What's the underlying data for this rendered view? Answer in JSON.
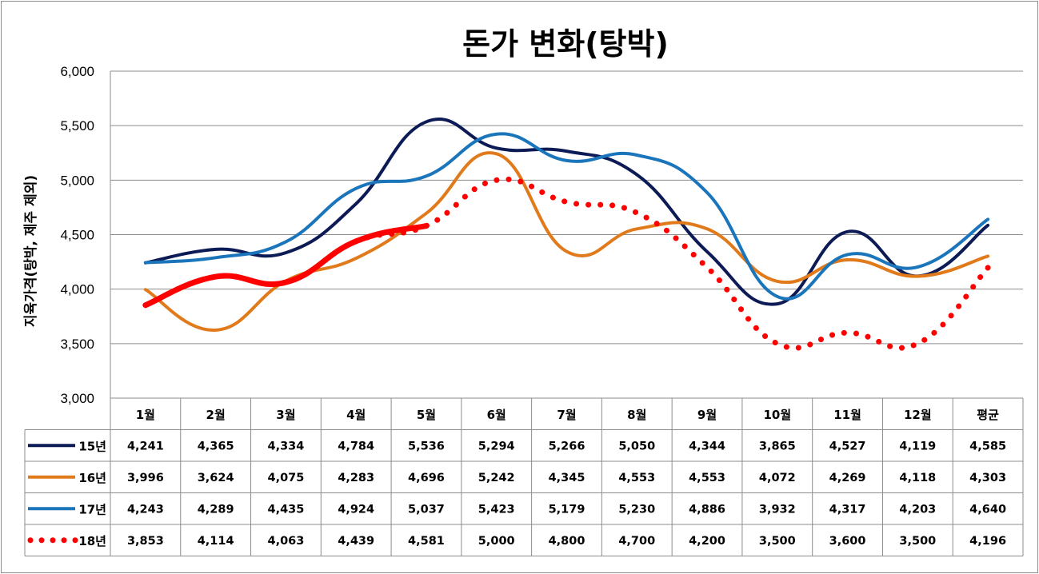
{
  "chart_data": {
    "type": "line",
    "title": "돈가 변화(탕박)",
    "ylabel": "지육가격(탕박, 제주 제외)",
    "xlabel": "",
    "ylim": [
      3000,
      6000
    ],
    "yticks": [
      "3,000",
      "3,500",
      "4,000",
      "4,500",
      "5,000",
      "5,500",
      "6,000"
    ],
    "ytick_values": [
      3000,
      3500,
      4000,
      4500,
      5000,
      5500,
      6000
    ],
    "grid": true,
    "categories": [
      "1월",
      "2월",
      "3월",
      "4월",
      "5월",
      "6월",
      "7월",
      "8월",
      "9월",
      "10월",
      "11월",
      "12월",
      "평균"
    ],
    "legend_position": "left (data table)",
    "series": [
      {
        "name": "15년",
        "color": "#0c1a55",
        "style": "solid",
        "width": 4,
        "values": [
          4241,
          4365,
          4334,
          4784,
          5536,
          5294,
          5266,
          5050,
          4344,
          3865,
          4527,
          4119,
          4585
        ],
        "labels": [
          "4,241",
          "4,365",
          "4,334",
          "4,784",
          "5,536",
          "5,294",
          "5,266",
          "5,050",
          "4,344",
          "3,865",
          "4,527",
          "4,119",
          "4,585"
        ]
      },
      {
        "name": "16년",
        "color": "#e07a1b",
        "style": "solid",
        "width": 4,
        "values": [
          3996,
          3624,
          4075,
          4283,
          4696,
          5242,
          4345,
          4553,
          4553,
          4072,
          4269,
          4118,
          4303
        ],
        "labels": [
          "3,996",
          "3,624",
          "4,075",
          "4,283",
          "4,696",
          "5,242",
          "4,345",
          "4,553",
          "4,553",
          "4,072",
          "4,269",
          "4,118",
          "4,303"
        ]
      },
      {
        "name": "17년",
        "color": "#1a75bb",
        "style": "solid",
        "width": 4,
        "values": [
          4243,
          4289,
          4435,
          4924,
          5037,
          5423,
          5179,
          5230,
          4886,
          3932,
          4317,
          4203,
          4640
        ],
        "labels": [
          "4,243",
          "4,289",
          "4,435",
          "4,924",
          "5,037",
          "5,423",
          "5,179",
          "5,230",
          "4,886",
          "3,932",
          "4,317",
          "4,203",
          "4,640"
        ]
      },
      {
        "name": "18년",
        "color": "#ff0000",
        "style": "dotted",
        "width": 7,
        "solid_until_index": 4,
        "values": [
          3853,
          4114,
          4063,
          4439,
          4581,
          5000,
          4800,
          4700,
          4200,
          3500,
          3600,
          3500,
          4196
        ],
        "labels": [
          "3,853",
          "4,114",
          "4,063",
          "4,439",
          "4,581",
          "5,000",
          "4,800",
          "4,700",
          "4,200",
          "3,500",
          "3,600",
          "3,500",
          "4,196"
        ]
      }
    ]
  }
}
